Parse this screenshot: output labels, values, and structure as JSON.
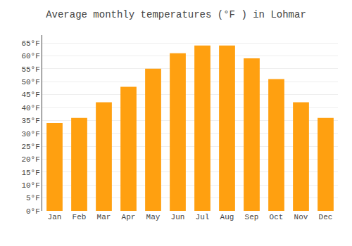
{
  "chart_data": {
    "type": "bar",
    "title": "Average monthly temperatures (°F ) in Lohmar",
    "categories": [
      "Jan",
      "Feb",
      "Mar",
      "Apr",
      "May",
      "Jun",
      "Jul",
      "Aug",
      "Sep",
      "Oct",
      "Nov",
      "Dec"
    ],
    "values": [
      34,
      36,
      42,
      48,
      55,
      61,
      64,
      64,
      59,
      51,
      42,
      36
    ],
    "color": "#FFA010",
    "ylim": [
      0,
      68
    ],
    "yticks": [
      {
        "value": 0,
        "label": "0°F"
      },
      {
        "value": 5,
        "label": "5°F"
      },
      {
        "value": 10,
        "label": "10°F"
      },
      {
        "value": 15,
        "label": "15°F"
      },
      {
        "value": 20,
        "label": "20°F"
      },
      {
        "value": 25,
        "label": "25°F"
      },
      {
        "value": 30,
        "label": "30°F"
      },
      {
        "value": 35,
        "label": "35°F"
      },
      {
        "value": 40,
        "label": "40°F"
      },
      {
        "value": 45,
        "label": "45°F"
      },
      {
        "value": 50,
        "label": "50°F"
      },
      {
        "value": 55,
        "label": "55°F"
      },
      {
        "value": 60,
        "label": "60°F"
      },
      {
        "value": 65,
        "label": "65°F"
      }
    ],
    "grid": true
  }
}
